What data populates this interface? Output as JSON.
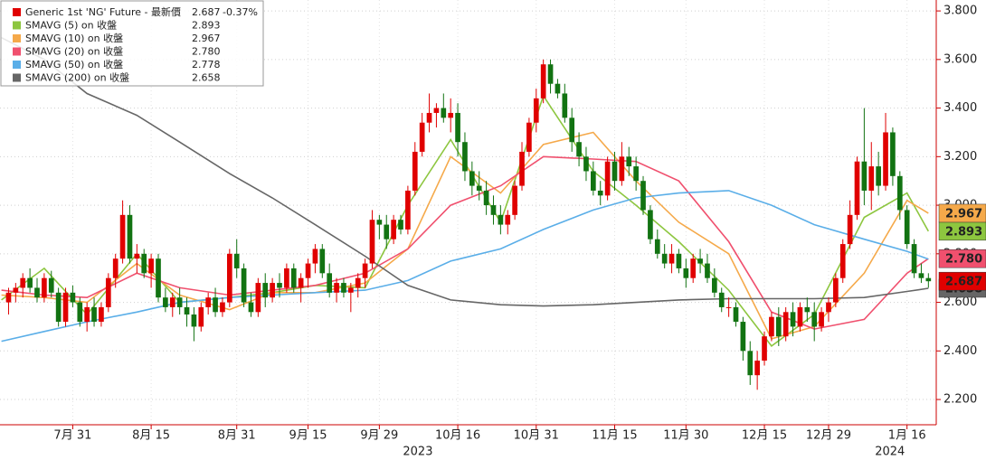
{
  "chart_data": {
    "type": "candlestick",
    "up_color": "#e00000",
    "down_color": "#127312",
    "series_name": "Generic 1st 'NG' Future - 最新價",
    "series_value_label": "2.687",
    "series_change": "-0.37%",
    "ohlc": [
      [
        2.6,
        2.66,
        2.55,
        2.64
      ],
      [
        2.64,
        2.68,
        2.6,
        2.66
      ],
      [
        2.66,
        2.72,
        2.62,
        2.7
      ],
      [
        2.7,
        2.74,
        2.64,
        2.66
      ],
      [
        2.66,
        2.7,
        2.6,
        2.62
      ],
      [
        2.62,
        2.72,
        2.6,
        2.7
      ],
      [
        2.7,
        2.73,
        2.62,
        2.64
      ],
      [
        2.64,
        2.66,
        2.5,
        2.52
      ],
      [
        2.52,
        2.66,
        2.5,
        2.64
      ],
      [
        2.64,
        2.67,
        2.58,
        2.6
      ],
      [
        2.6,
        2.62,
        2.5,
        2.52
      ],
      [
        2.52,
        2.6,
        2.48,
        2.58
      ],
      [
        2.58,
        2.62,
        2.5,
        2.52
      ],
      [
        2.52,
        2.6,
        2.5,
        2.58
      ],
      [
        2.58,
        2.72,
        2.56,
        2.7
      ],
      [
        2.7,
        2.8,
        2.66,
        2.78
      ],
      [
        2.78,
        3.02,
        2.76,
        2.96
      ],
      [
        2.96,
        3.0,
        2.76,
        2.78
      ],
      [
        2.78,
        2.84,
        2.72,
        2.8
      ],
      [
        2.8,
        2.82,
        2.7,
        2.72
      ],
      [
        2.72,
        2.8,
        2.66,
        2.78
      ],
      [
        2.78,
        2.8,
        2.6,
        2.62
      ],
      [
        2.62,
        2.66,
        2.56,
        2.58
      ],
      [
        2.58,
        2.64,
        2.54,
        2.62
      ],
      [
        2.62,
        2.66,
        2.55,
        2.58
      ],
      [
        2.58,
        2.62,
        2.5,
        2.55
      ],
      [
        2.55,
        2.58,
        2.44,
        2.5
      ],
      [
        2.5,
        2.6,
        2.48,
        2.58
      ],
      [
        2.58,
        2.64,
        2.55,
        2.62
      ],
      [
        2.62,
        2.66,
        2.54,
        2.56
      ],
      [
        2.56,
        2.62,
        2.54,
        2.6
      ],
      [
        2.6,
        2.82,
        2.58,
        2.8
      ],
      [
        2.8,
        2.86,
        2.7,
        2.74
      ],
      [
        2.74,
        2.76,
        2.58,
        2.6
      ],
      [
        2.6,
        2.64,
        2.54,
        2.56
      ],
      [
        2.56,
        2.7,
        2.54,
        2.68
      ],
      [
        2.68,
        2.72,
        2.58,
        2.62
      ],
      [
        2.62,
        2.7,
        2.6,
        2.68
      ],
      [
        2.68,
        2.72,
        2.62,
        2.66
      ],
      [
        2.66,
        2.76,
        2.64,
        2.74
      ],
      [
        2.74,
        2.76,
        2.64,
        2.66
      ],
      [
        2.66,
        2.72,
        2.6,
        2.7
      ],
      [
        2.7,
        2.78,
        2.66,
        2.76
      ],
      [
        2.76,
        2.84,
        2.72,
        2.82
      ],
      [
        2.82,
        2.84,
        2.7,
        2.72
      ],
      [
        2.72,
        2.76,
        2.62,
        2.64
      ],
      [
        2.64,
        2.7,
        2.6,
        2.68
      ],
      [
        2.68,
        2.7,
        2.62,
        2.64
      ],
      [
        2.64,
        2.68,
        2.56,
        2.66
      ],
      [
        2.66,
        2.72,
        2.62,
        2.7
      ],
      [
        2.7,
        2.78,
        2.66,
        2.76
      ],
      [
        2.76,
        2.98,
        2.74,
        2.94
      ],
      [
        2.94,
        2.96,
        2.86,
        2.92
      ],
      [
        2.92,
        2.96,
        2.82,
        2.86
      ],
      [
        2.86,
        2.96,
        2.84,
        2.94
      ],
      [
        2.94,
        2.96,
        2.88,
        2.9
      ],
      [
        2.9,
        3.08,
        2.88,
        3.06
      ],
      [
        3.06,
        3.26,
        3.04,
        3.22
      ],
      [
        3.22,
        3.38,
        3.2,
        3.34
      ],
      [
        3.34,
        3.46,
        3.3,
        3.38
      ],
      [
        3.38,
        3.42,
        3.32,
        3.4
      ],
      [
        3.4,
        3.46,
        3.34,
        3.36
      ],
      [
        3.36,
        3.44,
        3.3,
        3.38
      ],
      [
        3.38,
        3.42,
        3.2,
        3.26
      ],
      [
        3.26,
        3.3,
        3.1,
        3.14
      ],
      [
        3.14,
        3.18,
        3.04,
        3.08
      ],
      [
        3.08,
        3.14,
        3.02,
        3.06
      ],
      [
        3.06,
        3.1,
        2.96,
        3.0
      ],
      [
        3.0,
        3.04,
        2.92,
        2.96
      ],
      [
        2.96,
        3.0,
        2.88,
        2.92
      ],
      [
        2.92,
        2.98,
        2.88,
        2.96
      ],
      [
        2.96,
        3.1,
        2.94,
        3.08
      ],
      [
        3.08,
        3.26,
        3.06,
        3.22
      ],
      [
        3.22,
        3.36,
        3.2,
        3.34
      ],
      [
        3.34,
        3.48,
        3.3,
        3.44
      ],
      [
        3.44,
        3.6,
        3.42,
        3.58
      ],
      [
        3.58,
        3.6,
        3.46,
        3.5
      ],
      [
        3.5,
        3.52,
        3.44,
        3.46
      ],
      [
        3.46,
        3.5,
        3.34,
        3.36
      ],
      [
        3.36,
        3.4,
        3.22,
        3.26
      ],
      [
        3.26,
        3.3,
        3.16,
        3.2
      ],
      [
        3.2,
        3.24,
        3.1,
        3.14
      ],
      [
        3.14,
        3.18,
        3.04,
        3.06
      ],
      [
        3.06,
        3.1,
        3.0,
        3.04
      ],
      [
        3.04,
        3.2,
        3.02,
        3.18
      ],
      [
        3.18,
        3.22,
        3.06,
        3.1
      ],
      [
        3.1,
        3.26,
        3.08,
        3.2
      ],
      [
        3.2,
        3.24,
        3.12,
        3.16
      ],
      [
        3.16,
        3.2,
        3.06,
        3.1
      ],
      [
        3.1,
        3.12,
        2.96,
        2.98
      ],
      [
        2.98,
        3.0,
        2.84,
        2.86
      ],
      [
        2.86,
        2.9,
        2.78,
        2.8
      ],
      [
        2.8,
        2.84,
        2.74,
        2.76
      ],
      [
        2.76,
        2.84,
        2.72,
        2.8
      ],
      [
        2.8,
        2.82,
        2.72,
        2.74
      ],
      [
        2.74,
        2.78,
        2.66,
        2.7
      ],
      [
        2.7,
        2.8,
        2.68,
        2.78
      ],
      [
        2.78,
        2.82,
        2.72,
        2.76
      ],
      [
        2.76,
        2.8,
        2.68,
        2.7
      ],
      [
        2.7,
        2.74,
        2.62,
        2.64
      ],
      [
        2.64,
        2.66,
        2.56,
        2.58
      ],
      [
        2.58,
        2.62,
        2.54,
        2.58
      ],
      [
        2.58,
        2.6,
        2.5,
        2.52
      ],
      [
        2.52,
        2.54,
        2.36,
        2.4
      ],
      [
        2.4,
        2.44,
        2.26,
        2.3
      ],
      [
        2.3,
        2.4,
        2.24,
        2.36
      ],
      [
        2.36,
        2.48,
        2.34,
        2.46
      ],
      [
        2.46,
        2.56,
        2.44,
        2.54
      ],
      [
        2.54,
        2.58,
        2.42,
        2.46
      ],
      [
        2.46,
        2.58,
        2.44,
        2.56
      ],
      [
        2.56,
        2.6,
        2.46,
        2.5
      ],
      [
        2.5,
        2.6,
        2.48,
        2.58
      ],
      [
        2.58,
        2.62,
        2.52,
        2.56
      ],
      [
        2.56,
        2.6,
        2.44,
        2.5
      ],
      [
        2.5,
        2.58,
        2.48,
        2.56
      ],
      [
        2.56,
        2.62,
        2.52,
        2.6
      ],
      [
        2.6,
        2.72,
        2.58,
        2.7
      ],
      [
        2.7,
        2.86,
        2.68,
        2.84
      ],
      [
        2.84,
        3.02,
        2.82,
        2.96
      ],
      [
        2.96,
        3.2,
        2.94,
        3.18
      ],
      [
        3.18,
        3.4,
        3.0,
        3.06
      ],
      [
        3.06,
        3.26,
        2.98,
        3.16
      ],
      [
        3.16,
        3.22,
        3.04,
        3.08
      ],
      [
        3.08,
        3.38,
        3.06,
        3.3
      ],
      [
        3.3,
        3.32,
        3.08,
        3.12
      ],
      [
        3.12,
        3.14,
        2.94,
        2.98
      ],
      [
        2.98,
        3.0,
        2.82,
        2.84
      ],
      [
        2.84,
        2.86,
        2.7,
        2.72
      ],
      [
        2.72,
        2.76,
        2.68,
        2.7
      ],
      [
        2.7,
        2.72,
        2.66,
        2.687
      ]
    ],
    "series": [
      {
        "name": "SMAVG (5)  on 收盤",
        "value_label": "2.893",
        "color": "#8dc63f",
        "x": [
          -1,
          5,
          11,
          18,
          24,
          31,
          37,
          43,
          50,
          56,
          62,
          69,
          75,
          82,
          88,
          94,
          101,
          107,
          113,
          120,
          126,
          129
        ],
        "values": [
          2.61,
          2.74,
          2.55,
          2.8,
          2.6,
          2.62,
          2.64,
          2.67,
          2.66,
          3.0,
          3.27,
          2.93,
          3.45,
          3.14,
          3.0,
          2.85,
          2.65,
          2.42,
          2.55,
          2.95,
          3.05,
          2.893
        ]
      },
      {
        "name": "SMAVG (10)  on 收盤",
        "value_label": "2.967",
        "color": "#f5a94a",
        "x": [
          -1,
          5,
          11,
          18,
          24,
          31,
          37,
          43,
          50,
          56,
          62,
          69,
          75,
          82,
          88,
          94,
          101,
          107,
          113,
          120,
          126,
          129
        ],
        "values": [
          2.63,
          2.62,
          2.6,
          2.76,
          2.63,
          2.57,
          2.64,
          2.64,
          2.68,
          2.82,
          3.2,
          3.05,
          3.25,
          3.3,
          3.1,
          2.93,
          2.8,
          2.45,
          2.5,
          2.72,
          3.02,
          2.967
        ]
      },
      {
        "name": "SMAVG (20)  on 收盤",
        "value_label": "2.780",
        "color": "#f0506e",
        "x": [
          -1,
          5,
          11,
          18,
          24,
          31,
          37,
          43,
          50,
          56,
          62,
          69,
          75,
          82,
          88,
          94,
          101,
          107,
          113,
          120,
          126,
          129
        ],
        "values": [
          2.65,
          2.63,
          2.62,
          2.72,
          2.66,
          2.63,
          2.65,
          2.67,
          2.72,
          2.82,
          3.0,
          3.08,
          3.2,
          3.19,
          3.18,
          3.1,
          2.85,
          2.56,
          2.49,
          2.53,
          2.72,
          2.78
        ]
      },
      {
        "name": "SMAVG (50)  on 收盤",
        "value_label": "2.778",
        "color": "#5aaee8",
        "x": [
          -1,
          5,
          11,
          18,
          24,
          31,
          37,
          43,
          50,
          56,
          62,
          69,
          75,
          82,
          88,
          94,
          101,
          107,
          113,
          120,
          126,
          129
        ],
        "values": [
          2.44,
          2.48,
          2.52,
          2.56,
          2.6,
          2.62,
          2.63,
          2.64,
          2.65,
          2.69,
          2.77,
          2.82,
          2.9,
          2.98,
          3.03,
          3.05,
          3.06,
          3.0,
          2.92,
          2.86,
          2.81,
          2.778
        ]
      },
      {
        "name": "SMAVG (200)  on 收盤",
        "value_label": "2.658",
        "color": "#666666",
        "x": [
          -1,
          5,
          11,
          18,
          24,
          31,
          37,
          43,
          50,
          56,
          62,
          69,
          75,
          82,
          88,
          94,
          101,
          107,
          113,
          120,
          126,
          129
        ],
        "values": [
          3.69,
          3.6,
          3.46,
          3.37,
          3.26,
          3.13,
          3.03,
          2.92,
          2.79,
          2.67,
          2.61,
          2.59,
          2.585,
          2.59,
          2.6,
          2.61,
          2.615,
          2.615,
          2.615,
          2.62,
          2.645,
          2.658
        ]
      }
    ],
    "xlim": [
      -1.2,
      130.1
    ],
    "xticks": [
      {
        "value": 9,
        "label": "7月 31"
      },
      {
        "value": 20,
        "label": "8月 15"
      },
      {
        "value": 32,
        "label": "8月 31"
      },
      {
        "value": 42,
        "label": "9月 15"
      },
      {
        "value": 52,
        "label": "9月 29"
      },
      {
        "value": 63,
        "label": "10月 16"
      },
      {
        "value": 74,
        "label": "10月 31"
      },
      {
        "value": 85,
        "label": "11月 15"
      },
      {
        "value": 95,
        "label": "11月 30"
      },
      {
        "value": 106,
        "label": "12月 15"
      },
      {
        "value": 115,
        "label": "12月 29"
      },
      {
        "value": 126,
        "label": "1月 16"
      }
    ],
    "x_group_labels": [
      {
        "value": 57.4,
        "label": "2023"
      },
      {
        "value": 123.6,
        "label": "2024"
      }
    ],
    "ylim": [
      2.096,
      3.845
    ],
    "yticks": [
      {
        "value": 2.2,
        "label": "2.200"
      },
      {
        "value": 2.4,
        "label": "2.400"
      },
      {
        "value": 2.6,
        "label": "2.600"
      },
      {
        "value": 2.8,
        "label": "2.800"
      },
      {
        "value": 3.0,
        "label": "3.000"
      },
      {
        "value": 3.2,
        "label": "3.200"
      },
      {
        "value": 3.4,
        "label": "3.400"
      },
      {
        "value": 3.6,
        "label": "3.600"
      },
      {
        "value": 3.8,
        "label": "3.800"
      }
    ],
    "grid": true
  }
}
